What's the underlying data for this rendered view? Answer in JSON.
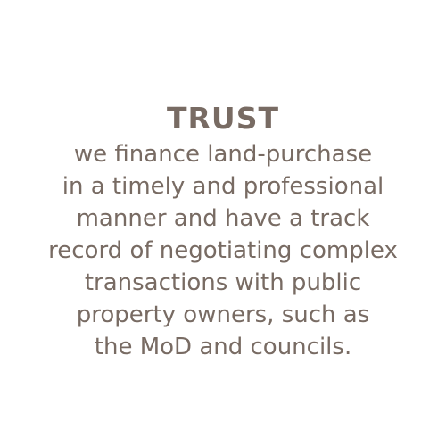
{
  "heading": "TRUST",
  "body_lines": [
    "we finance land-purchase",
    "in a timely and professional",
    "manner and have a track",
    "record of negotiating complex",
    "transactions with public",
    "property owners, such as",
    "the MoD and councils."
  ],
  "colors": {
    "text": "#786b63",
    "background": "#ffffff"
  }
}
